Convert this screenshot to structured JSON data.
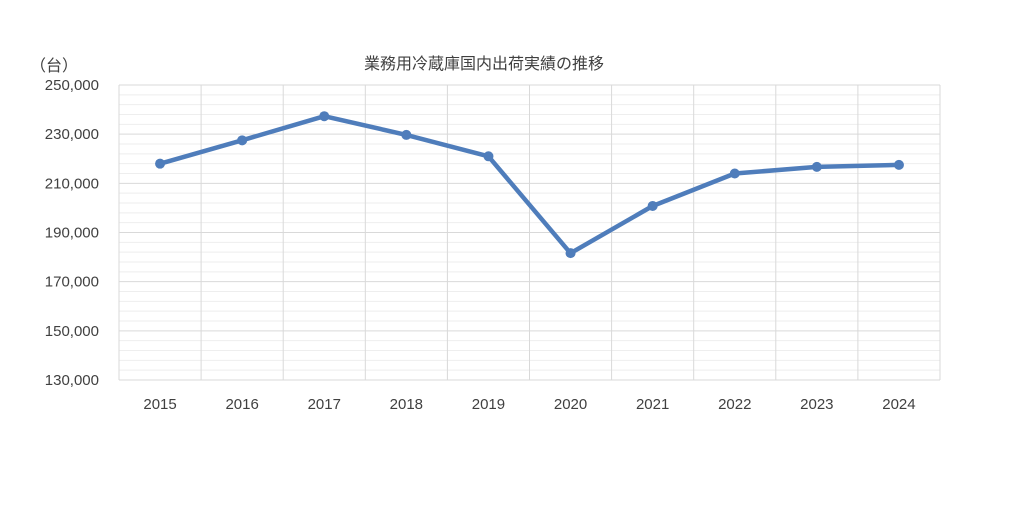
{
  "chart_data": {
    "type": "line",
    "title": "業務用冷蔵庫国内出荷実績の推移",
    "y_unit": "（台）",
    "xlabel": "",
    "ylabel": "",
    "categories": [
      "2015",
      "2016",
      "2017",
      "2018",
      "2019",
      "2020",
      "2021",
      "2022",
      "2023",
      "2024"
    ],
    "series": [
      {
        "values": [
          218000,
          227500,
          237300,
          229700,
          221000,
          181600,
          200800,
          214000,
          216700,
          217500
        ]
      }
    ],
    "ylim": [
      130000,
      250000
    ],
    "y_ticks": [
      130000,
      150000,
      170000,
      190000,
      210000,
      230000,
      250000
    ],
    "y_tick_labels": [
      "130,000",
      "150,000",
      "170,000",
      "190,000",
      "210,000",
      "230,000",
      "250,000"
    ],
    "minor_grid_step": 4000,
    "grid": true,
    "legend": "none",
    "colors": {
      "line": "#4f7dbb",
      "major_grid": "#d9d9d9",
      "minor_grid": "#eeeeee",
      "axis_text": "#404040"
    }
  }
}
